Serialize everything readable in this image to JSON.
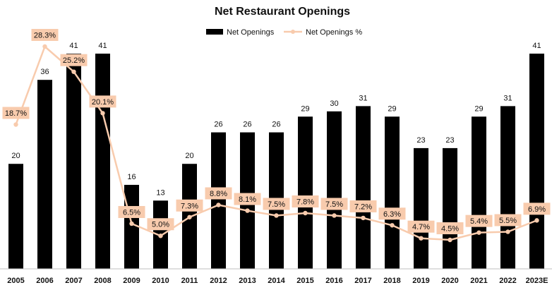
{
  "chart_data": {
    "type": "bar",
    "title": "Net Restaurant Openings",
    "categories": [
      "2005",
      "2006",
      "2007",
      "2008",
      "2009",
      "2010",
      "2011",
      "2012",
      "2013",
      "2014",
      "2015",
      "2016",
      "2017",
      "2018",
      "2019",
      "2020",
      "2021",
      "2022",
      "2023E"
    ],
    "series": [
      {
        "name": "Net Openings",
        "type": "bar",
        "color": "#000000",
        "values": [
          20,
          36,
          41,
          41,
          16,
          13,
          20,
          26,
          26,
          26,
          29,
          30,
          31,
          29,
          23,
          23,
          29,
          31,
          41
        ],
        "labels": [
          "20",
          "36",
          "41",
          "41",
          "16",
          "13",
          "20",
          "26",
          "26",
          "26",
          "29",
          "30",
          "31",
          "29",
          "23",
          "23",
          "29",
          "31",
          "41"
        ]
      },
      {
        "name": "Net Openings %",
        "type": "line",
        "color": "#F8CBAD",
        "values": [
          18.7,
          28.3,
          25.2,
          20.1,
          6.5,
          5.0,
          7.3,
          8.8,
          8.1,
          7.5,
          7.8,
          7.5,
          7.2,
          6.3,
          4.7,
          4.5,
          5.4,
          5.5,
          6.9
        ],
        "labels": [
          "18.7%",
          "28.3%",
          "25.2%",
          "20.1%",
          "6.5%",
          "5.0%",
          "7.3%",
          "8.8%",
          "8.1%",
          "7.5%",
          "7.8%",
          "7.5%",
          "7.2%",
          "6.3%",
          "4.7%",
          "4.5%",
          "5.4%",
          "5.5%",
          "6.9%"
        ]
      }
    ],
    "bar_axis_range": [
      0,
      41
    ],
    "line_axis_range": [
      0,
      28.3
    ],
    "grid": false,
    "legend_position": "top-center"
  }
}
